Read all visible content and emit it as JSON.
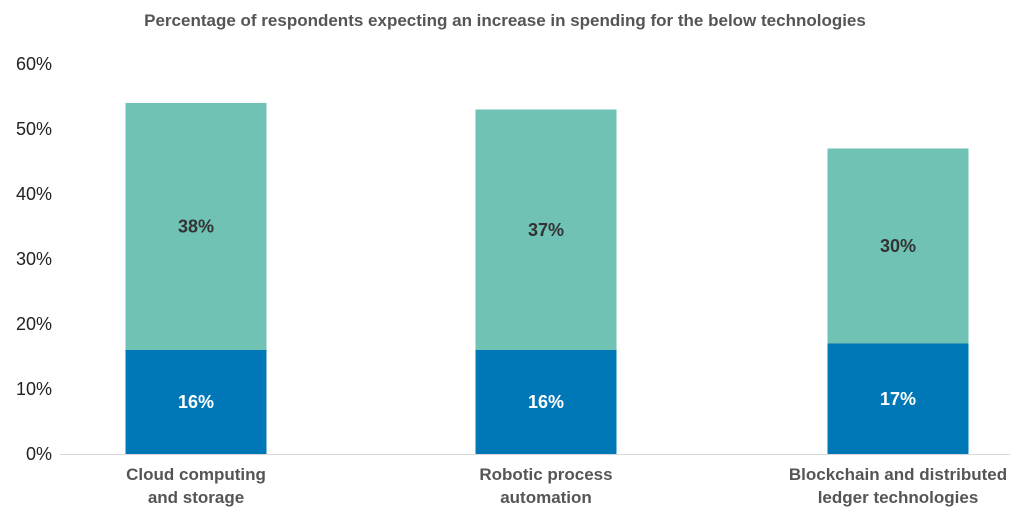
{
  "chart_data": {
    "type": "bar",
    "stacked": true,
    "title": "Percentage of respondents expecting an increase in spending for the below technologies",
    "categories": [
      [
        "Cloud computing",
        "and storage"
      ],
      [
        "Robotic process",
        "automation"
      ],
      [
        "Blockchain and distributed",
        "ledger technologies"
      ]
    ],
    "series": [
      {
        "values": [
          16,
          16,
          17
        ],
        "labels": [
          "16%",
          "16%",
          "17%"
        ],
        "color": "#0077b6"
      },
      {
        "values": [
          38,
          37,
          30
        ],
        "labels": [
          "38%",
          "37%",
          "30%"
        ],
        "color": "#70c2b4"
      }
    ],
    "ylim": [
      0,
      60
    ],
    "yticks": [
      0,
      10,
      20,
      30,
      40,
      50,
      60
    ],
    "ytick_labels": [
      "0%",
      "10%",
      "20%",
      "30%",
      "40%",
      "50%",
      "60%"
    ],
    "grid": false,
    "legend": "none"
  }
}
